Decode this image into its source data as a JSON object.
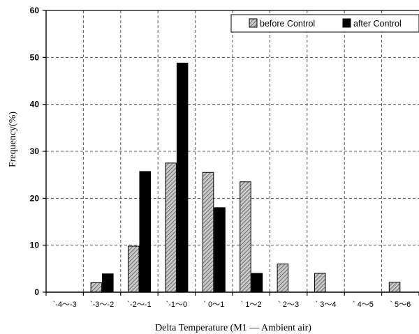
{
  "chart_data": {
    "type": "bar",
    "title": "",
    "xlabel": "Delta Temperature (M1 — Ambient air)",
    "ylabel": "Frequency(%)",
    "ylim": [
      0,
      60
    ],
    "yticks": [
      0,
      10,
      20,
      30,
      40,
      50,
      60
    ],
    "grid": true,
    "legend_position": "top-right",
    "categories": [
      "`-4～-3",
      "`-3～-2",
      "`-2～-1",
      "`-1～0",
      "` 0～1",
      "` 1～2",
      "` 2～3",
      "` 3～4",
      "` 4～5",
      "` 5～6"
    ],
    "series": [
      {
        "name": "before Control",
        "pattern": "hatched",
        "color": "#8c8c8c",
        "values": [
          0,
          2,
          9.8,
          27.5,
          25.5,
          23.5,
          6,
          4,
          0,
          2.1
        ]
      },
      {
        "name": "after Control",
        "pattern": "solid",
        "color": "#000000",
        "values": [
          0,
          3.9,
          25.7,
          48.8,
          18,
          4,
          0,
          0,
          0,
          0
        ]
      }
    ]
  }
}
